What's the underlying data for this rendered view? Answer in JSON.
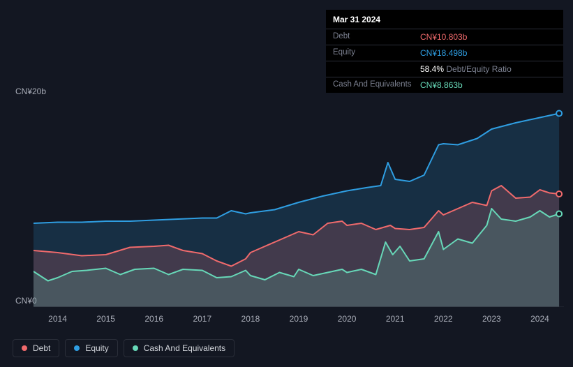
{
  "tooltip": {
    "date": "Mar 31 2024",
    "rows": [
      {
        "label": "Debt",
        "value": "CN¥10.803b",
        "color": "#f06a6c"
      },
      {
        "label": "Equity",
        "value": "CN¥18.498b",
        "color": "#2f9ee2"
      },
      {
        "label": "",
        "ratioValue": "58.4%",
        "ratioLabel": "Debt/Equity Ratio"
      },
      {
        "label": "Cash And Equivalents",
        "value": "CN¥8.863b",
        "color": "#67d8b8"
      }
    ]
  },
  "chart": {
    "type": "area",
    "background": "#131722",
    "yAxis": {
      "min": 0,
      "max": 20,
      "unit": "CN¥",
      "suffix": "b",
      "labels": [
        {
          "text": "CN¥20b",
          "value": 20
        },
        {
          "text": "CN¥0",
          "value": 0
        }
      ],
      "label_color": "#a9adb8",
      "label_fontsize": 12
    },
    "xAxis": {
      "min": 2013.5,
      "max": 2024.5,
      "ticks": [
        2014,
        2015,
        2016,
        2017,
        2018,
        2019,
        2020,
        2021,
        2022,
        2023,
        2024
      ],
      "label_color": "#a9adb8",
      "label_fontsize": 12
    },
    "series": {
      "equity": {
        "label": "Equity",
        "color": "#2f9ee2",
        "fill": "rgba(47,158,226,0.18)",
        "line_width": 2,
        "data": [
          [
            2013.5,
            8.0
          ],
          [
            2014,
            8.1
          ],
          [
            2014.5,
            8.1
          ],
          [
            2015,
            8.2
          ],
          [
            2015.5,
            8.2
          ],
          [
            2016,
            8.3
          ],
          [
            2016.5,
            8.4
          ],
          [
            2017,
            8.5
          ],
          [
            2017.3,
            8.5
          ],
          [
            2017.6,
            9.2
          ],
          [
            2017.9,
            8.9
          ],
          [
            2018,
            9.0
          ],
          [
            2018.5,
            9.3
          ],
          [
            2019,
            10.0
          ],
          [
            2019.5,
            10.6
          ],
          [
            2020,
            11.1
          ],
          [
            2020.4,
            11.4
          ],
          [
            2020.7,
            11.6
          ],
          [
            2020.85,
            13.8
          ],
          [
            2021.0,
            12.2
          ],
          [
            2021.3,
            12.0
          ],
          [
            2021.6,
            12.6
          ],
          [
            2021.9,
            15.5
          ],
          [
            2022,
            15.6
          ],
          [
            2022.3,
            15.5
          ],
          [
            2022.7,
            16.1
          ],
          [
            2023,
            17.0
          ],
          [
            2023.5,
            17.6
          ],
          [
            2024,
            18.1
          ],
          [
            2024.4,
            18.5
          ]
        ]
      },
      "debt": {
        "label": "Debt",
        "color": "#f06a6c",
        "fill": "rgba(240,106,108,0.20)",
        "line_width": 2,
        "data": [
          [
            2013.5,
            5.4
          ],
          [
            2014,
            5.2
          ],
          [
            2014.5,
            4.9
          ],
          [
            2015,
            5.0
          ],
          [
            2015.5,
            5.7
          ],
          [
            2016,
            5.8
          ],
          [
            2016.3,
            5.9
          ],
          [
            2016.6,
            5.4
          ],
          [
            2017,
            5.1
          ],
          [
            2017.3,
            4.4
          ],
          [
            2017.6,
            3.9
          ],
          [
            2017.9,
            4.6
          ],
          [
            2018,
            5.2
          ],
          [
            2018.3,
            5.8
          ],
          [
            2018.6,
            6.4
          ],
          [
            2019,
            7.2
          ],
          [
            2019.3,
            6.9
          ],
          [
            2019.6,
            8.0
          ],
          [
            2019.9,
            8.2
          ],
          [
            2020,
            7.8
          ],
          [
            2020.3,
            8.0
          ],
          [
            2020.6,
            7.4
          ],
          [
            2020.9,
            7.8
          ],
          [
            2021,
            7.5
          ],
          [
            2021.3,
            7.4
          ],
          [
            2021.6,
            7.6
          ],
          [
            2021.9,
            9.2
          ],
          [
            2022,
            8.8
          ],
          [
            2022.3,
            9.4
          ],
          [
            2022.6,
            10.0
          ],
          [
            2022.9,
            9.7
          ],
          [
            2023,
            11.1
          ],
          [
            2023.2,
            11.6
          ],
          [
            2023.5,
            10.4
          ],
          [
            2023.8,
            10.5
          ],
          [
            2024,
            11.2
          ],
          [
            2024.2,
            10.9
          ],
          [
            2024.4,
            10.8
          ]
        ]
      },
      "cash": {
        "label": "Cash And Equivalents",
        "color": "#67d8b8",
        "fill": "rgba(103,216,184,0.18)",
        "line_width": 2,
        "data": [
          [
            2013.5,
            3.4
          ],
          [
            2013.8,
            2.5
          ],
          [
            2014,
            2.8
          ],
          [
            2014.3,
            3.4
          ],
          [
            2014.6,
            3.5
          ],
          [
            2015,
            3.7
          ],
          [
            2015.3,
            3.1
          ],
          [
            2015.6,
            3.6
          ],
          [
            2016,
            3.7
          ],
          [
            2016.3,
            3.1
          ],
          [
            2016.6,
            3.6
          ],
          [
            2017,
            3.5
          ],
          [
            2017.3,
            2.8
          ],
          [
            2017.6,
            2.9
          ],
          [
            2017.9,
            3.5
          ],
          [
            2018,
            3.0
          ],
          [
            2018.3,
            2.6
          ],
          [
            2018.6,
            3.3
          ],
          [
            2018.9,
            2.9
          ],
          [
            2019,
            3.6
          ],
          [
            2019.3,
            3.0
          ],
          [
            2019.6,
            3.3
          ],
          [
            2019.9,
            3.6
          ],
          [
            2020,
            3.3
          ],
          [
            2020.3,
            3.6
          ],
          [
            2020.6,
            3.1
          ],
          [
            2020.8,
            6.2
          ],
          [
            2020.95,
            5.0
          ],
          [
            2021.1,
            5.8
          ],
          [
            2021.3,
            4.4
          ],
          [
            2021.6,
            4.6
          ],
          [
            2021.9,
            7.2
          ],
          [
            2022,
            5.5
          ],
          [
            2022.3,
            6.5
          ],
          [
            2022.6,
            6.1
          ],
          [
            2022.9,
            7.8
          ],
          [
            2023,
            9.4
          ],
          [
            2023.2,
            8.4
          ],
          [
            2023.5,
            8.2
          ],
          [
            2023.8,
            8.6
          ],
          [
            2024,
            9.2
          ],
          [
            2024.2,
            8.6
          ],
          [
            2024.4,
            8.9
          ]
        ]
      }
    },
    "legend_order": [
      "debt",
      "equity",
      "cash"
    ]
  }
}
